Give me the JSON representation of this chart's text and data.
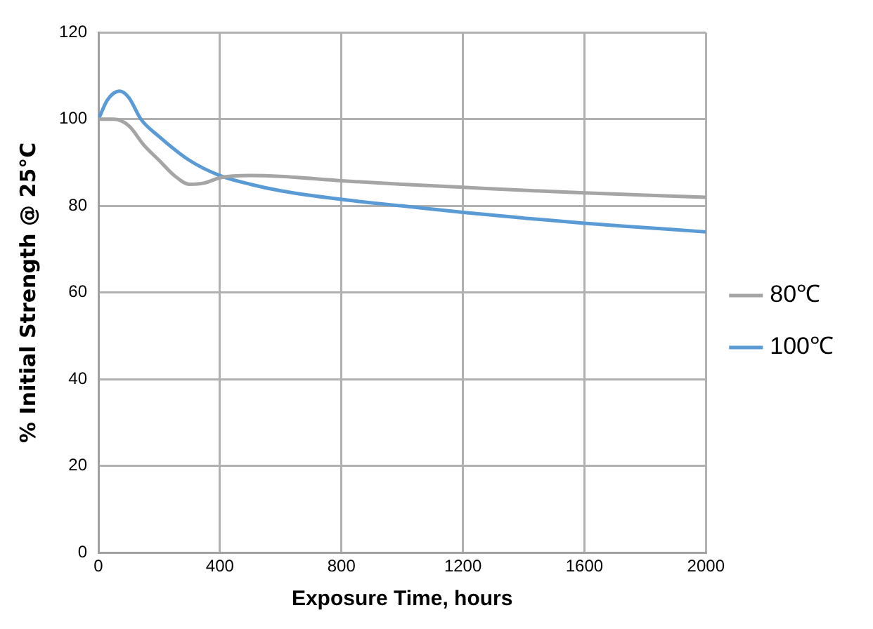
{
  "chart_data": {
    "type": "line",
    "xlabel": "Exposure Time, hours",
    "ylabel": "% Initial Strength @ 25°C",
    "xlim": [
      0,
      2000
    ],
    "xticks": [
      0,
      400,
      800,
      1200,
      1600,
      2000
    ],
    "ylim": [
      0,
      120
    ],
    "yticks": [
      0,
      20,
      40,
      60,
      80,
      100,
      120
    ],
    "grid": true,
    "legend": "right",
    "marker": "none",
    "series": [
      {
        "name": "80℃",
        "color": "#a5a5a5",
        "x": [
          0,
          50,
          100,
          150,
          200,
          250,
          300,
          350,
          400,
          500,
          600,
          800,
          1000,
          1200,
          1400,
          1600,
          1800,
          2000
        ],
        "values": [
          100,
          100,
          98.5,
          94,
          90.5,
          87,
          85,
          85.3,
          86.5,
          87,
          86.8,
          85.8,
          85,
          84.3,
          83.6,
          83,
          82.5,
          82
        ]
      },
      {
        "name": "100℃",
        "color": "#5b9bd5",
        "x": [
          0,
          30,
          70,
          100,
          140,
          200,
          300,
          400,
          500,
          600,
          800,
          1000,
          1200,
          1400,
          1600,
          1800,
          2000
        ],
        "values": [
          100,
          104.5,
          106.5,
          105,
          100,
          96,
          90.5,
          87,
          85,
          83.5,
          81.5,
          80,
          78.5,
          77.2,
          76,
          75,
          74
        ]
      }
    ]
  }
}
